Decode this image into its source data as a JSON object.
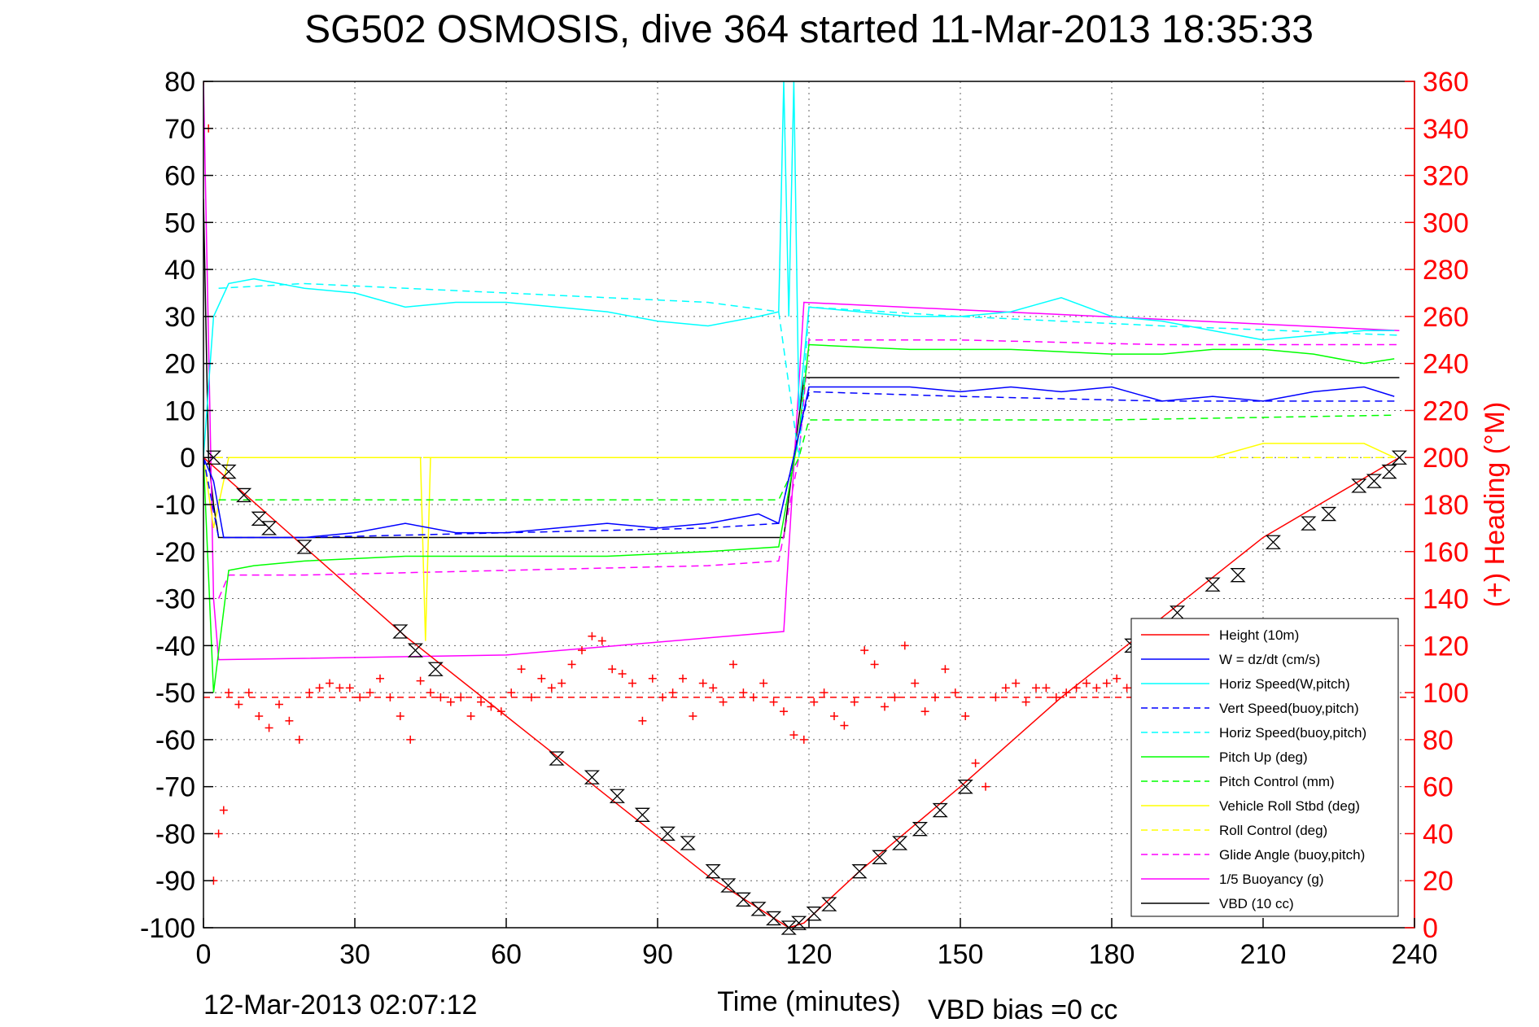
{
  "chart_data": {
    "type": "line",
    "title": "SG502 OSMOSIS, dive 364 started 11-Mar-2013 18:35:33",
    "xlabel": "Time (minutes)",
    "ylabel_right": "(+) Heading (°M)",
    "footer_left": "12-Mar-2013 02:07:12",
    "footer_right": "VBD bias =0 cc",
    "xlim": [
      0,
      240
    ],
    "ylim": [
      -100,
      80
    ],
    "ylim_right": [
      0,
      360
    ],
    "x_ticks": [
      0,
      30,
      60,
      90,
      120,
      150,
      180,
      210,
      240
    ],
    "y_ticks": [
      80,
      70,
      60,
      50,
      40,
      30,
      20,
      10,
      0,
      -10,
      -20,
      -30,
      -40,
      -50,
      -60,
      -70,
      -80,
      -90,
      -100
    ],
    "y_ticks_right": [
      360,
      340,
      320,
      300,
      280,
      260,
      240,
      220,
      200,
      180,
      160,
      140,
      120,
      100,
      80,
      60,
      40,
      20,
      0
    ],
    "grid": true,
    "legend_position": "bottom-right",
    "colors": {
      "height": "#ff0000",
      "w": "#0000ff",
      "horiz_speed": "#00ffff",
      "pitch": "#00ff00",
      "roll": "#ffff00",
      "glide": "#ff00ff",
      "vbd": "#000000",
      "heading": "#ff0000"
    },
    "series": [
      {
        "name": "Height (10m)",
        "color": "#ff0000",
        "dash": "solid",
        "x": [
          0,
          20,
          40,
          60,
          80,
          100,
          116,
          119,
          130,
          150,
          170,
          190,
          210,
          237
        ],
        "y": [
          0,
          -19,
          -38,
          -55,
          -72,
          -89,
          -100,
          -99,
          -88,
          -70,
          -51,
          -34,
          -17,
          0
        ]
      },
      {
        "name": "W = dz/dt (cm/s)",
        "color": "#0000ff",
        "dash": "solid",
        "x": [
          0,
          2,
          4,
          10,
          20,
          30,
          40,
          50,
          60,
          70,
          80,
          90,
          100,
          110,
          114,
          118,
          120,
          130,
          140,
          150,
          160,
          170,
          180,
          190,
          200,
          210,
          220,
          230,
          236
        ],
        "y": [
          0,
          -5,
          -17,
          -17,
          -17,
          -16,
          -14,
          -16,
          -16,
          -15,
          -14,
          -15,
          -14,
          -12,
          -14,
          5,
          15,
          15,
          15,
          14,
          15,
          14,
          15,
          12,
          13,
          12,
          14,
          15,
          13
        ]
      },
      {
        "name": "Horiz Speed(W,pitch)",
        "color": "#00ffff",
        "dash": "solid",
        "x": [
          0,
          2,
          5,
          10,
          20,
          30,
          40,
          50,
          60,
          70,
          80,
          90,
          100,
          110,
          114,
          115,
          116,
          117,
          118,
          120,
          130,
          140,
          150,
          160,
          170,
          180,
          190,
          200,
          210,
          220,
          230,
          236
        ],
        "y": [
          0,
          30,
          37,
          38,
          36,
          35,
          32,
          33,
          33,
          32,
          31,
          29,
          28,
          30,
          31,
          80,
          30,
          80,
          10,
          32,
          31,
          30,
          30,
          31,
          34,
          30,
          29,
          27,
          25,
          26,
          27,
          27
        ]
      },
      {
        "name": "Vert Speed(buoy,pitch)",
        "color": "#0000ff",
        "dash": "dashed",
        "x": [
          0,
          3,
          5,
          20,
          60,
          100,
          114,
          118,
          120,
          150,
          190,
          237
        ],
        "y": [
          0,
          -17,
          -17,
          -17,
          -16,
          -15,
          -14,
          5,
          14,
          13,
          12,
          12
        ]
      },
      {
        "name": "Horiz Speed(buoy,pitch)",
        "color": "#00ffff",
        "dash": "dashed",
        "x": [
          3,
          20,
          60,
          100,
          114,
          118,
          120,
          150,
          190,
          237
        ],
        "y": [
          36,
          37,
          35,
          33,
          31,
          0,
          32,
          30,
          28,
          26
        ]
      },
      {
        "name": "Pitch Up (deg)",
        "color": "#00ff00",
        "dash": "solid",
        "x": [
          0,
          2,
          5,
          10,
          20,
          40,
          60,
          80,
          100,
          114,
          118,
          120,
          140,
          160,
          180,
          190,
          200,
          210,
          220,
          230,
          236
        ],
        "y": [
          0,
          -50,
          -24,
          -23,
          -22,
          -21,
          -21,
          -21,
          -20,
          -19,
          5,
          24,
          23,
          23,
          22,
          22,
          23,
          23,
          22,
          20,
          21
        ]
      },
      {
        "name": "Pitch Control (mm)",
        "color": "#00ff00",
        "dash": "dashed",
        "x": [
          3,
          114,
          118,
          120,
          180,
          236
        ],
        "y": [
          -9,
          -9,
          0,
          8,
          8,
          9
        ]
      },
      {
        "name": "Vehicle Roll Stbd (deg)",
        "color": "#ffff00",
        "dash": "solid",
        "x": [
          0,
          2,
          5,
          10,
          15,
          20,
          30,
          40,
          43,
          44,
          45,
          60,
          80,
          100,
          114,
          118,
          120,
          130,
          140,
          150,
          160,
          170,
          180,
          190,
          200,
          210,
          220,
          230,
          236
        ],
        "y": [
          0,
          -15,
          0,
          0,
          0,
          0,
          0,
          0,
          0,
          -39,
          0,
          0,
          0,
          0,
          0,
          0,
          0,
          0,
          0,
          0,
          0,
          0,
          0,
          0,
          0,
          3,
          3,
          3,
          0
        ]
      },
      {
        "name": "Roll Control (deg)",
        "color": "#ffff00",
        "dash": "dashed",
        "x": [
          0,
          10,
          20,
          60,
          100,
          114,
          118,
          120,
          150,
          190,
          237
        ],
        "y": [
          0,
          0,
          0,
          0,
          0,
          0,
          0,
          0,
          0,
          0,
          0
        ]
      },
      {
        "name": "Glide Angle (buoy,pitch)",
        "color": "#ff00ff",
        "dash": "dashed",
        "x": [
          3,
          5,
          20,
          60,
          100,
          114,
          118,
          120,
          150,
          190,
          237
        ],
        "y": [
          -30,
          -25,
          -25,
          -24,
          -23,
          -22,
          0,
          25,
          25,
          24,
          24
        ]
      },
      {
        "name": "1/5 Buoyancy (g)",
        "color": "#ff00ff",
        "dash": "solid",
        "x": [
          0,
          2,
          3,
          60,
          115,
          119,
          237
        ],
        "y": [
          80,
          -30,
          -43,
          -42,
          -37,
          33,
          27
        ]
      },
      {
        "name": "VBD (10 cc)",
        "color": "#000000",
        "dash": "solid",
        "x": [
          0,
          1,
          2,
          3,
          115,
          117,
          119,
          237
        ],
        "y": [
          55,
          0,
          -10,
          -17,
          -17,
          0,
          17,
          17
        ]
      }
    ],
    "heading_series": {
      "name": "Heading",
      "marker": "+",
      "color": "#ff0000",
      "mean": 98,
      "x": [
        0,
        1,
        2,
        3,
        4,
        5,
        7,
        9,
        11,
        13,
        15,
        17,
        19,
        21,
        23,
        25,
        27,
        29,
        31,
        33,
        35,
        37,
        39,
        41,
        43,
        45,
        47,
        49,
        51,
        53,
        55,
        57,
        59,
        61,
        63,
        65,
        67,
        69,
        71,
        73,
        75,
        77,
        79,
        81,
        83,
        85,
        87,
        89,
        91,
        93,
        95,
        97,
        99,
        101,
        103,
        105,
        107,
        109,
        111,
        113,
        115,
        117,
        119,
        121,
        123,
        125,
        127,
        129,
        131,
        133,
        135,
        137,
        139,
        141,
        143,
        145,
        147,
        149,
        151,
        153,
        155,
        157,
        159,
        161,
        163,
        165,
        167,
        169,
        171,
        173,
        175,
        177,
        179,
        181,
        183,
        185
      ],
      "y": [
        360,
        340,
        20,
        40,
        50,
        100,
        95,
        100,
        90,
        85,
        95,
        88,
        80,
        100,
        102,
        104,
        102,
        102,
        98,
        100,
        106,
        98,
        90,
        80,
        105,
        100,
        98,
        96,
        98,
        90,
        96,
        94,
        92,
        100,
        110,
        98,
        106,
        102,
        104,
        112,
        118,
        124,
        122,
        110,
        108,
        104,
        88,
        106,
        98,
        100,
        106,
        90,
        104,
        102,
        96,
        112,
        100,
        98,
        104,
        96,
        92,
        82,
        80,
        96,
        100,
        90,
        86,
        96,
        118,
        112,
        94,
        98,
        120,
        104,
        92,
        98,
        110,
        100,
        90,
        70,
        60,
        98,
        102,
        104,
        96,
        102,
        102,
        98,
        100,
        102,
        104,
        102,
        104,
        106,
        102,
        120
      ]
    },
    "depth_markers": {
      "symbol": "hourglass",
      "x": [
        2,
        5,
        8,
        11,
        13,
        20,
        39,
        42,
        46,
        70,
        77,
        82,
        87,
        92,
        96,
        101,
        104,
        107,
        110,
        113,
        116,
        118,
        121,
        124,
        130,
        134,
        138,
        142,
        146,
        151,
        184,
        193,
        200,
        205,
        212,
        219,
        223,
        229,
        232,
        235,
        237
      ],
      "y": [
        0,
        -3,
        -8,
        -13,
        -15,
        -19,
        -37,
        -41,
        -45,
        -64,
        -68,
        -72,
        -76,
        -80,
        -82,
        -88,
        -91,
        -94,
        -96,
        -98,
        -100,
        -99,
        -97,
        -95,
        -88,
        -85,
        -82,
        -79,
        -75,
        -70,
        -40,
        -33,
        -27,
        -25,
        -18,
        -14,
        -12,
        -6,
        -5,
        -3,
        0
      ]
    }
  }
}
